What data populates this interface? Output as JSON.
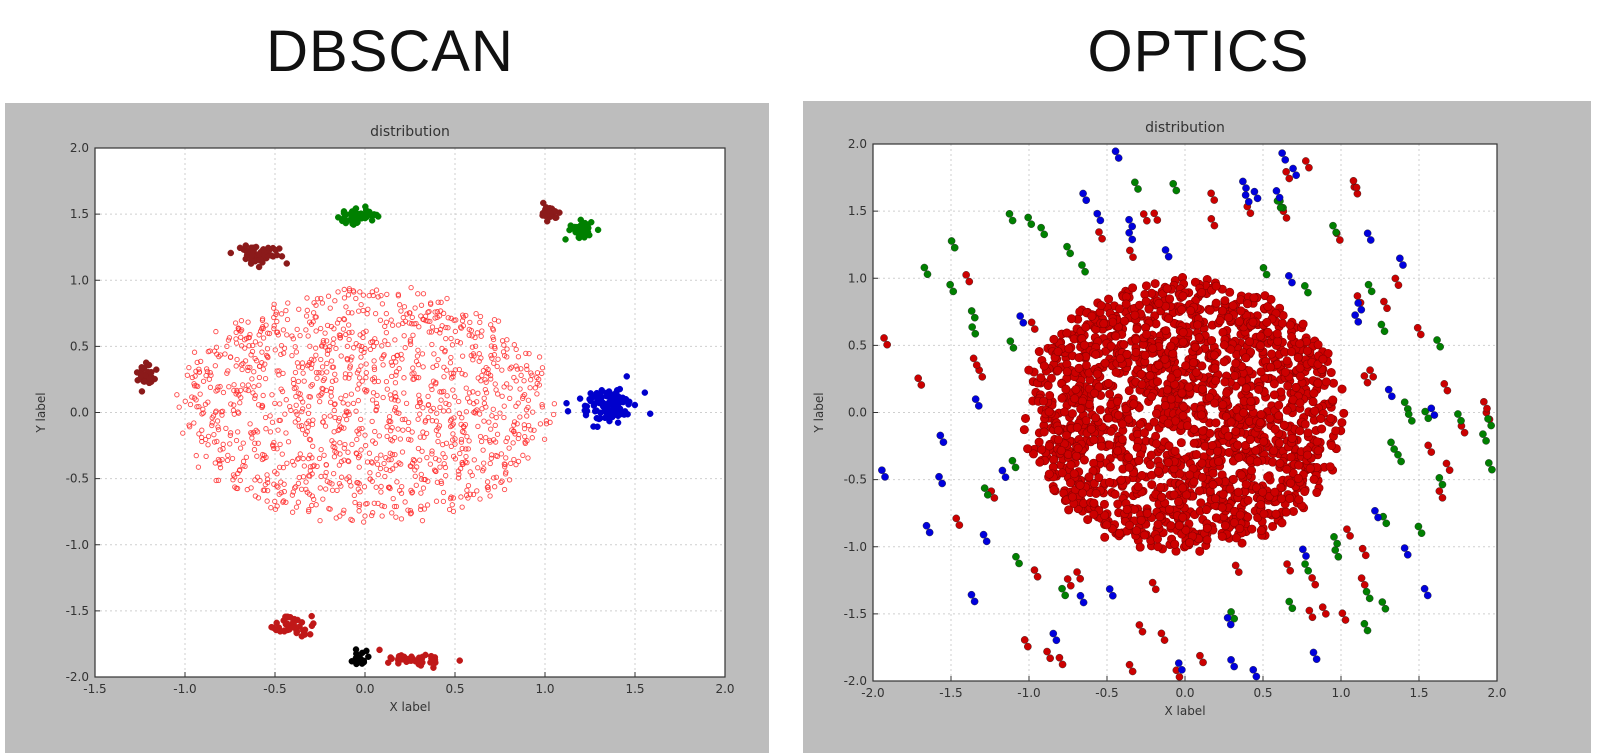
{
  "headings": {
    "left": "DBSCAN",
    "right": "OPTICS"
  },
  "chart_data": [
    {
      "type": "scatter",
      "title": "distribution",
      "xlabel": "X label",
      "ylabel": "Y label",
      "xlim": [
        -1.5,
        2.0
      ],
      "ylim": [
        -2.0,
        2.0
      ],
      "xticks": [
        "-1.5",
        "-1.0",
        "-0.5",
        "0.0",
        "0.5",
        "1.0",
        "1.5",
        "2.0"
      ],
      "yticks": [
        "-2.0",
        "-1.5",
        "-1.0",
        "-0.5",
        "0.0",
        "0.5",
        "1.0",
        "1.5",
        "2.0"
      ],
      "grid": true,
      "series": [
        {
          "color": "#ff2a2a",
          "marker": "small-ring",
          "shape": "disk",
          "center": [
            0.0,
            0.05
          ],
          "radius": [
            1.02,
            0.88
          ],
          "count": 1300
        },
        {
          "color": "#008000",
          "marker": "dot",
          "shape": "cluster",
          "center": [
            -0.05,
            1.48
          ],
          "spread": [
            0.09,
            0.06
          ],
          "count": 55
        },
        {
          "color": "#8b1a1a",
          "marker": "dot",
          "shape": "cluster",
          "center": [
            -0.58,
            1.2
          ],
          "spread": [
            0.11,
            0.07
          ],
          "count": 50
        },
        {
          "color": "#8b1a1a",
          "marker": "dot",
          "shape": "cluster",
          "center": [
            1.03,
            1.5
          ],
          "spread": [
            0.05,
            0.05
          ],
          "count": 25
        },
        {
          "color": "#008000",
          "marker": "dot",
          "shape": "cluster",
          "center": [
            1.2,
            1.38
          ],
          "spread": [
            0.07,
            0.06
          ],
          "count": 40
        },
        {
          "color": "#8b1a1a",
          "marker": "dot",
          "shape": "cluster",
          "center": [
            -1.22,
            0.28
          ],
          "spread": [
            0.05,
            0.06
          ],
          "count": 28
        },
        {
          "color": "#0000cc",
          "marker": "dot",
          "shape": "cluster",
          "center": [
            1.35,
            0.05
          ],
          "spread": [
            0.13,
            0.11
          ],
          "count": 110
        },
        {
          "color": "#c01818",
          "marker": "dot",
          "shape": "cluster",
          "center": [
            -0.4,
            -1.62
          ],
          "spread": [
            0.08,
            0.06
          ],
          "count": 45
        },
        {
          "color": "#000000",
          "marker": "dot",
          "shape": "cluster",
          "center": [
            -0.03,
            -1.85
          ],
          "spread": [
            0.04,
            0.05
          ],
          "count": 18
        },
        {
          "color": "#c01818",
          "marker": "dot",
          "shape": "cluster",
          "center": [
            0.28,
            -1.87
          ],
          "spread": [
            0.14,
            0.04
          ],
          "count": 45
        }
      ]
    },
    {
      "type": "scatter",
      "title": "distribution",
      "xlabel": "X label",
      "ylabel": "Y label",
      "xlim": [
        -2.0,
        2.0
      ],
      "ylim": [
        -2.0,
        2.0
      ],
      "xticks": [
        "-2.0",
        "-1.5",
        "-1.0",
        "-0.5",
        "0.0",
        "0.5",
        "1.0",
        "1.5",
        "2.0"
      ],
      "yticks": [
        "-2.0",
        "-1.5",
        "-1.0",
        "-0.5",
        "0.0",
        "0.5",
        "1.0",
        "1.5",
        "2.0"
      ],
      "grid": true,
      "series": [
        {
          "color": "#cc0000",
          "marker": "big-dot",
          "shape": "disk",
          "center": [
            0.0,
            -0.02
          ],
          "radius": [
            1.0,
            1.0
          ],
          "count": 1800
        },
        {
          "color": "#cc0000",
          "marker": "pair",
          "shape": "scatter-pairs",
          "count": 55
        },
        {
          "color": "#008000",
          "marker": "pair",
          "shape": "scatter-pairs",
          "count": 45
        },
        {
          "color": "#0000dd",
          "marker": "pair",
          "shape": "scatter-pairs",
          "count": 40
        }
      ]
    }
  ]
}
